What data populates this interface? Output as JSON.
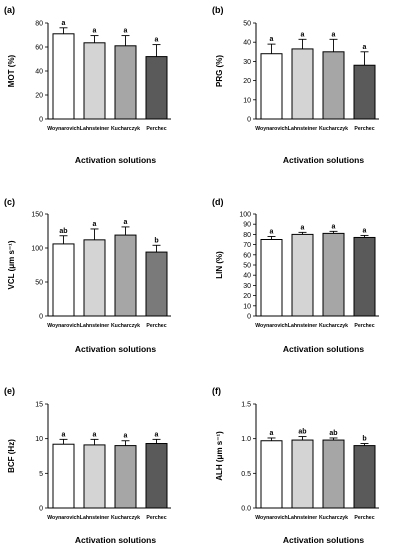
{
  "colors": {
    "white": "#ffffff",
    "light_gray": "#d4d4d4",
    "mid_gray": "#a6a6a6",
    "dark_gray": "#5a5a5a",
    "darker_gray": "#7a7a7a",
    "axis": "#000000"
  },
  "chart_data": [
    {
      "type": "bar",
      "panel": "(a)",
      "categories": [
        "Woynarovich",
        "Lahnsteiner",
        "Kucharczyk",
        "Perchec"
      ],
      "values": [
        71,
        63.5,
        61,
        52
      ],
      "errors": [
        5,
        6,
        8.5,
        10
      ],
      "letters": [
        "a",
        "a",
        "a",
        "a"
      ],
      "colors": [
        "#ffffff",
        "#d4d4d4",
        "#a6a6a6",
        "#5a5a5a"
      ],
      "ylabel": "MOT (%)",
      "xlabel": "Activation solutions",
      "ylim": [
        0,
        80
      ],
      "yticks": [
        0,
        20,
        40,
        60,
        80
      ],
      "ytick_labels": [
        "0",
        "20",
        "40",
        "60",
        "80"
      ]
    },
    {
      "type": "bar",
      "panel": "(b)",
      "categories": [
        "Woynarovich",
        "Lahnsteiner",
        "Kucharczyk",
        "Perchec"
      ],
      "values": [
        34,
        36.5,
        35,
        28
      ],
      "errors": [
        5,
        5,
        6.5,
        7
      ],
      "letters": [
        "a",
        "a",
        "a",
        "a"
      ],
      "colors": [
        "#ffffff",
        "#d4d4d4",
        "#a6a6a6",
        "#5a5a5a"
      ],
      "ylabel": "PRG (%)",
      "xlabel": "Activation solutions",
      "ylim": [
        0,
        50
      ],
      "yticks": [
        0,
        10,
        20,
        30,
        40,
        50
      ],
      "ytick_labels": [
        "0",
        "10",
        "20",
        "30",
        "40",
        "50"
      ]
    },
    {
      "type": "bar",
      "panel": "(c)",
      "categories": [
        "Woynarovich",
        "Lahnsteiner",
        "Kucharczyk",
        "Perchec"
      ],
      "values": [
        106,
        112,
        119,
        94
      ],
      "errors": [
        12,
        16,
        12,
        10
      ],
      "letters": [
        "ab",
        "a",
        "a",
        "b"
      ],
      "colors": [
        "#ffffff",
        "#d4d4d4",
        "#a6a6a6",
        "#7a7a7a"
      ],
      "ylabel": "VCL (μm s⁻¹)",
      "xlabel": "Activation solutions",
      "ylim": [
        0,
        150
      ],
      "yticks": [
        0,
        50,
        100,
        150
      ],
      "ytick_labels": [
        "0",
        "50",
        "100",
        "150"
      ]
    },
    {
      "type": "bar",
      "panel": "(d)",
      "categories": [
        "Woynarovich",
        "Lahnsteiner",
        "Kucharczyk",
        "Perchec"
      ],
      "values": [
        75,
        80,
        81,
        77
      ],
      "errors": [
        3,
        2,
        2,
        2
      ],
      "letters": [
        "a",
        "a",
        "a",
        "a"
      ],
      "colors": [
        "#ffffff",
        "#d4d4d4",
        "#a6a6a6",
        "#5a5a5a"
      ],
      "ylabel": "LIN (%)",
      "xlabel": "Activation solutions",
      "ylim": [
        0,
        100
      ],
      "yticks": [
        0,
        10,
        20,
        30,
        40,
        50,
        60,
        70,
        80,
        90,
        100
      ],
      "ytick_labels": [
        "0",
        "10",
        "20",
        "30",
        "40",
        "50",
        "60",
        "70",
        "80",
        "90",
        "100"
      ]
    },
    {
      "type": "bar",
      "panel": "(e)",
      "categories": [
        "Woynarovich",
        "Lahnsteiner",
        "Kucharczyk",
        "Perchec"
      ],
      "values": [
        9.2,
        9.1,
        9.0,
        9.3
      ],
      "errors": [
        0.7,
        0.8,
        0.7,
        0.6
      ],
      "letters": [
        "a",
        "a",
        "a",
        "a"
      ],
      "colors": [
        "#ffffff",
        "#d4d4d4",
        "#a6a6a6",
        "#5a5a5a"
      ],
      "ylabel": "BCF (Hz)",
      "xlabel": "Activation solutions",
      "ylim": [
        0,
        15
      ],
      "yticks": [
        0,
        5,
        10,
        15
      ],
      "ytick_labels": [
        "0",
        "5",
        "10",
        "15"
      ]
    },
    {
      "type": "bar",
      "panel": "(f)",
      "categories": [
        "Woynarovich",
        "Lahnsteiner",
        "Kucharczyk",
        "Perchec"
      ],
      "values": [
        0.97,
        0.98,
        0.98,
        0.9
      ],
      "errors": [
        0.04,
        0.05,
        0.03,
        0.03
      ],
      "letters": [
        "a",
        "ab",
        "ab",
        "b"
      ],
      "colors": [
        "#ffffff",
        "#d4d4d4",
        "#a6a6a6",
        "#5a5a5a"
      ],
      "ylabel": "ALH (μm s⁻¹)",
      "xlabel": "Activation solutions",
      "ylim": [
        0,
        1.5
      ],
      "yticks": [
        0,
        0.5,
        1.0,
        1.5
      ],
      "ytick_labels": [
        "0.0",
        "0.5",
        "1.0",
        "1.5"
      ]
    }
  ]
}
